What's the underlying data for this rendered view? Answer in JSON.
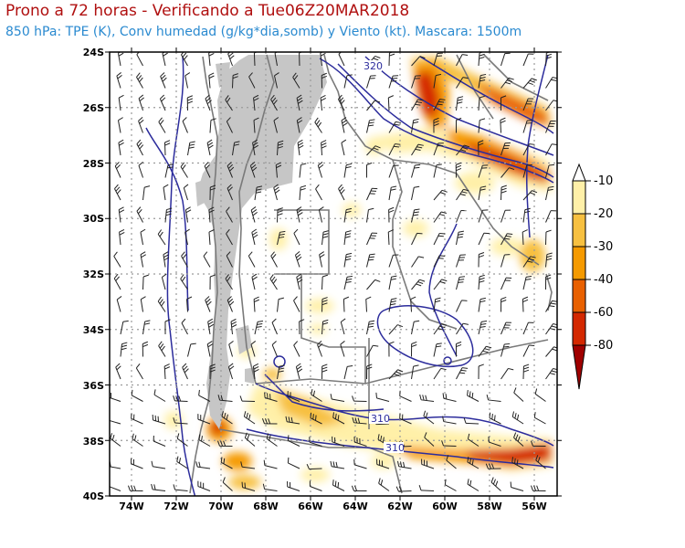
{
  "header": {
    "title": "Prono a 72 horas - Verificando a Tue06Z20MAR2018",
    "subtitle": "850 hPa: TPE (K), Conv humedad (g/kg*dia,somb) y Viento (kt). Mascara: 1500m"
  },
  "map": {
    "lat_labels": [
      "24S",
      "26S",
      "28S",
      "30S",
      "32S",
      "34S",
      "36S",
      "38S",
      "40S"
    ],
    "lon_labels": [
      "74W",
      "72W",
      "70W",
      "68W",
      "66W",
      "64W",
      "62W",
      "60W",
      "58W",
      "56W"
    ],
    "lat_range": [
      -40,
      -24
    ],
    "lon_range": [
      -75,
      -55
    ],
    "contour_labels": [
      "320",
      "310",
      "310"
    ],
    "colors": {
      "contour": "#2c2c9c",
      "mask": "#c6c6c6",
      "border": "#7a7a7a",
      "grid": "#9a9a9a",
      "wind": "#222222"
    }
  },
  "legend": {
    "labels": [
      "-10",
      "-20",
      "-30",
      "-40",
      "-60",
      "-80"
    ],
    "colors": [
      "#ffffff",
      "#fff0a8",
      "#f7c040",
      "#f59a00",
      "#e86000",
      "#d42800",
      "#a00000"
    ]
  }
}
